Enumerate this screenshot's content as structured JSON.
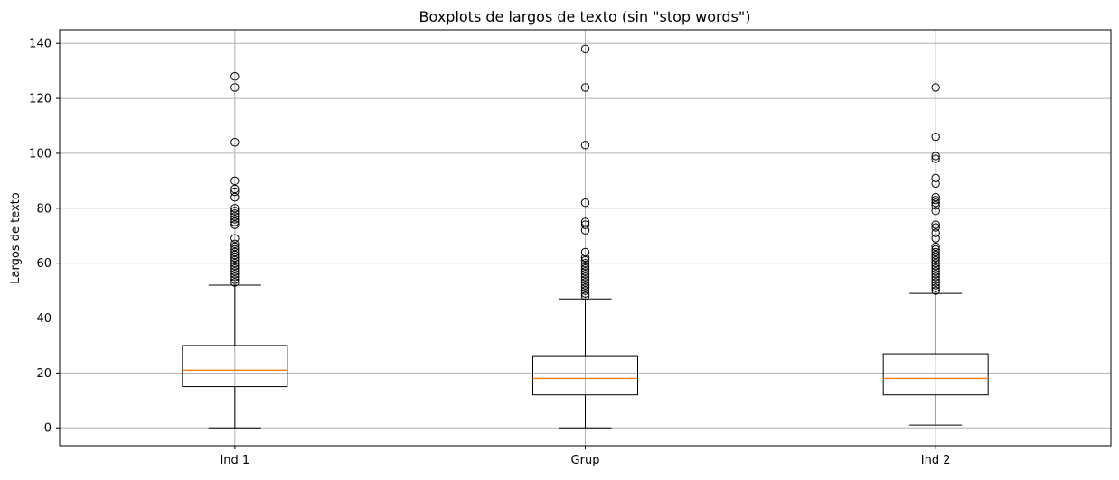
{
  "chart_data": {
    "type": "box",
    "title": "Boxplots de largos de texto (sin \"stop words\")",
    "xlabel": "",
    "ylabel": "Largos de texto",
    "ylim": [
      -6.5,
      145
    ],
    "yticks": [
      0,
      20,
      40,
      60,
      80,
      100,
      120,
      140
    ],
    "grid": true,
    "categories": [
      "Ind 1",
      "Grup",
      "Ind 2"
    ],
    "boxes": [
      {
        "label": "Ind 1",
        "whisker_low": 0,
        "q1": 15,
        "median": 21,
        "q3": 30,
        "whisker_high": 52,
        "outliers": [
          53,
          54,
          55,
          56,
          57,
          58,
          59,
          60,
          61,
          62,
          63,
          64,
          65,
          66,
          67,
          69,
          74,
          75,
          76,
          77,
          78,
          79,
          80,
          84,
          86,
          87,
          90,
          104,
          124,
          128
        ]
      },
      {
        "label": "Grup",
        "whisker_low": 0,
        "q1": 12,
        "median": 18,
        "q3": 26,
        "whisker_high": 47,
        "outliers": [
          48,
          49,
          50,
          51,
          52,
          53,
          54,
          55,
          56,
          57,
          58,
          59,
          60,
          61,
          62,
          64,
          72,
          74,
          75,
          82,
          103,
          124,
          138
        ]
      },
      {
        "label": "Ind 2",
        "whisker_low": 1,
        "q1": 12,
        "median": 18,
        "q3": 27,
        "whisker_high": 49,
        "outliers": [
          50,
          51,
          52,
          53,
          54,
          55,
          56,
          57,
          58,
          59,
          60,
          61,
          62,
          63,
          64,
          65,
          66,
          69,
          71,
          73,
          74,
          79,
          81,
          82,
          83,
          84,
          89,
          91,
          98,
          99,
          106,
          124
        ]
      }
    ],
    "colors": {
      "box": "#000000",
      "median": "#ff7f0e",
      "grid": "#b0b0b0",
      "outlier_edge": "#000000"
    }
  }
}
